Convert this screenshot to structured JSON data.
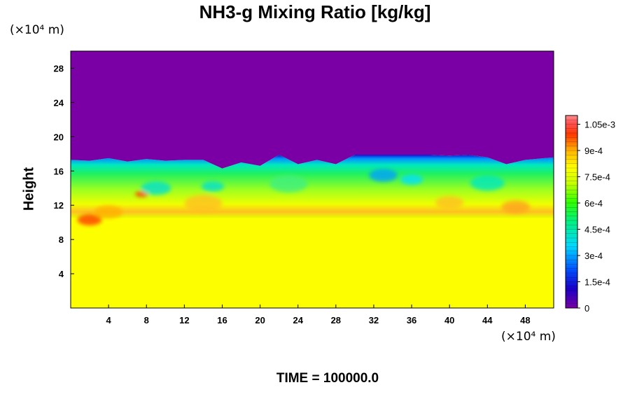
{
  "chart_data": {
    "type": "heatmap",
    "title": "NH3-g Mixing Ratio [kg/kg]",
    "ylabel": "Height",
    "y_unit_label": "(×10⁴ m)",
    "x_unit_label": "(×10⁴ m)",
    "x_range": [
      0,
      51
    ],
    "y_range": [
      0,
      30
    ],
    "x_ticks": [
      4,
      8,
      12,
      16,
      20,
      24,
      28,
      32,
      36,
      40,
      44,
      48
    ],
    "y_ticks": [
      4,
      8,
      12,
      16,
      20,
      24,
      28
    ],
    "colorbar": {
      "range": [
        0,
        0.0011
      ],
      "tick_values": [
        0,
        0.00015,
        0.0003,
        0.00045,
        0.0006,
        0.00075,
        0.0009,
        0.00105
      ],
      "tick_labels": [
        "0",
        "1.5e-4",
        "3e-4",
        "4.5e-4",
        "6e-4",
        "7.5e-4",
        "9e-4",
        "1.05e-3"
      ]
    },
    "regions": [
      {
        "name": "upper",
        "y_from": 18,
        "y_to": 30,
        "value": 0
      },
      {
        "name": "lower",
        "y_from": 0,
        "y_to": 10.5,
        "value": 0.0008
      }
    ],
    "cloud_top_height": [
      [
        0,
        17.3
      ],
      [
        2,
        17.2
      ],
      [
        4,
        17.5
      ],
      [
        6,
        17.1
      ],
      [
        8,
        17.4
      ],
      [
        10,
        17.2
      ],
      [
        12,
        17.3
      ],
      [
        14,
        17.3
      ],
      [
        16,
        16.3
      ],
      [
        18,
        17.0
      ],
      [
        20,
        16.6
      ],
      [
        22,
        17.9
      ],
      [
        24,
        16.8
      ],
      [
        26,
        17.3
      ],
      [
        28,
        16.8
      ],
      [
        30,
        17.9
      ],
      [
        32,
        17.9
      ],
      [
        34,
        17.9
      ],
      [
        36,
        17.9
      ],
      [
        38,
        17.9
      ],
      [
        40,
        17.8
      ],
      [
        42,
        17.9
      ],
      [
        44,
        17.6
      ],
      [
        46,
        16.8
      ],
      [
        48,
        17.3
      ],
      [
        50,
        17.5
      ],
      [
        51,
        17.6
      ]
    ],
    "time_label": "TIME = 100000.0"
  }
}
